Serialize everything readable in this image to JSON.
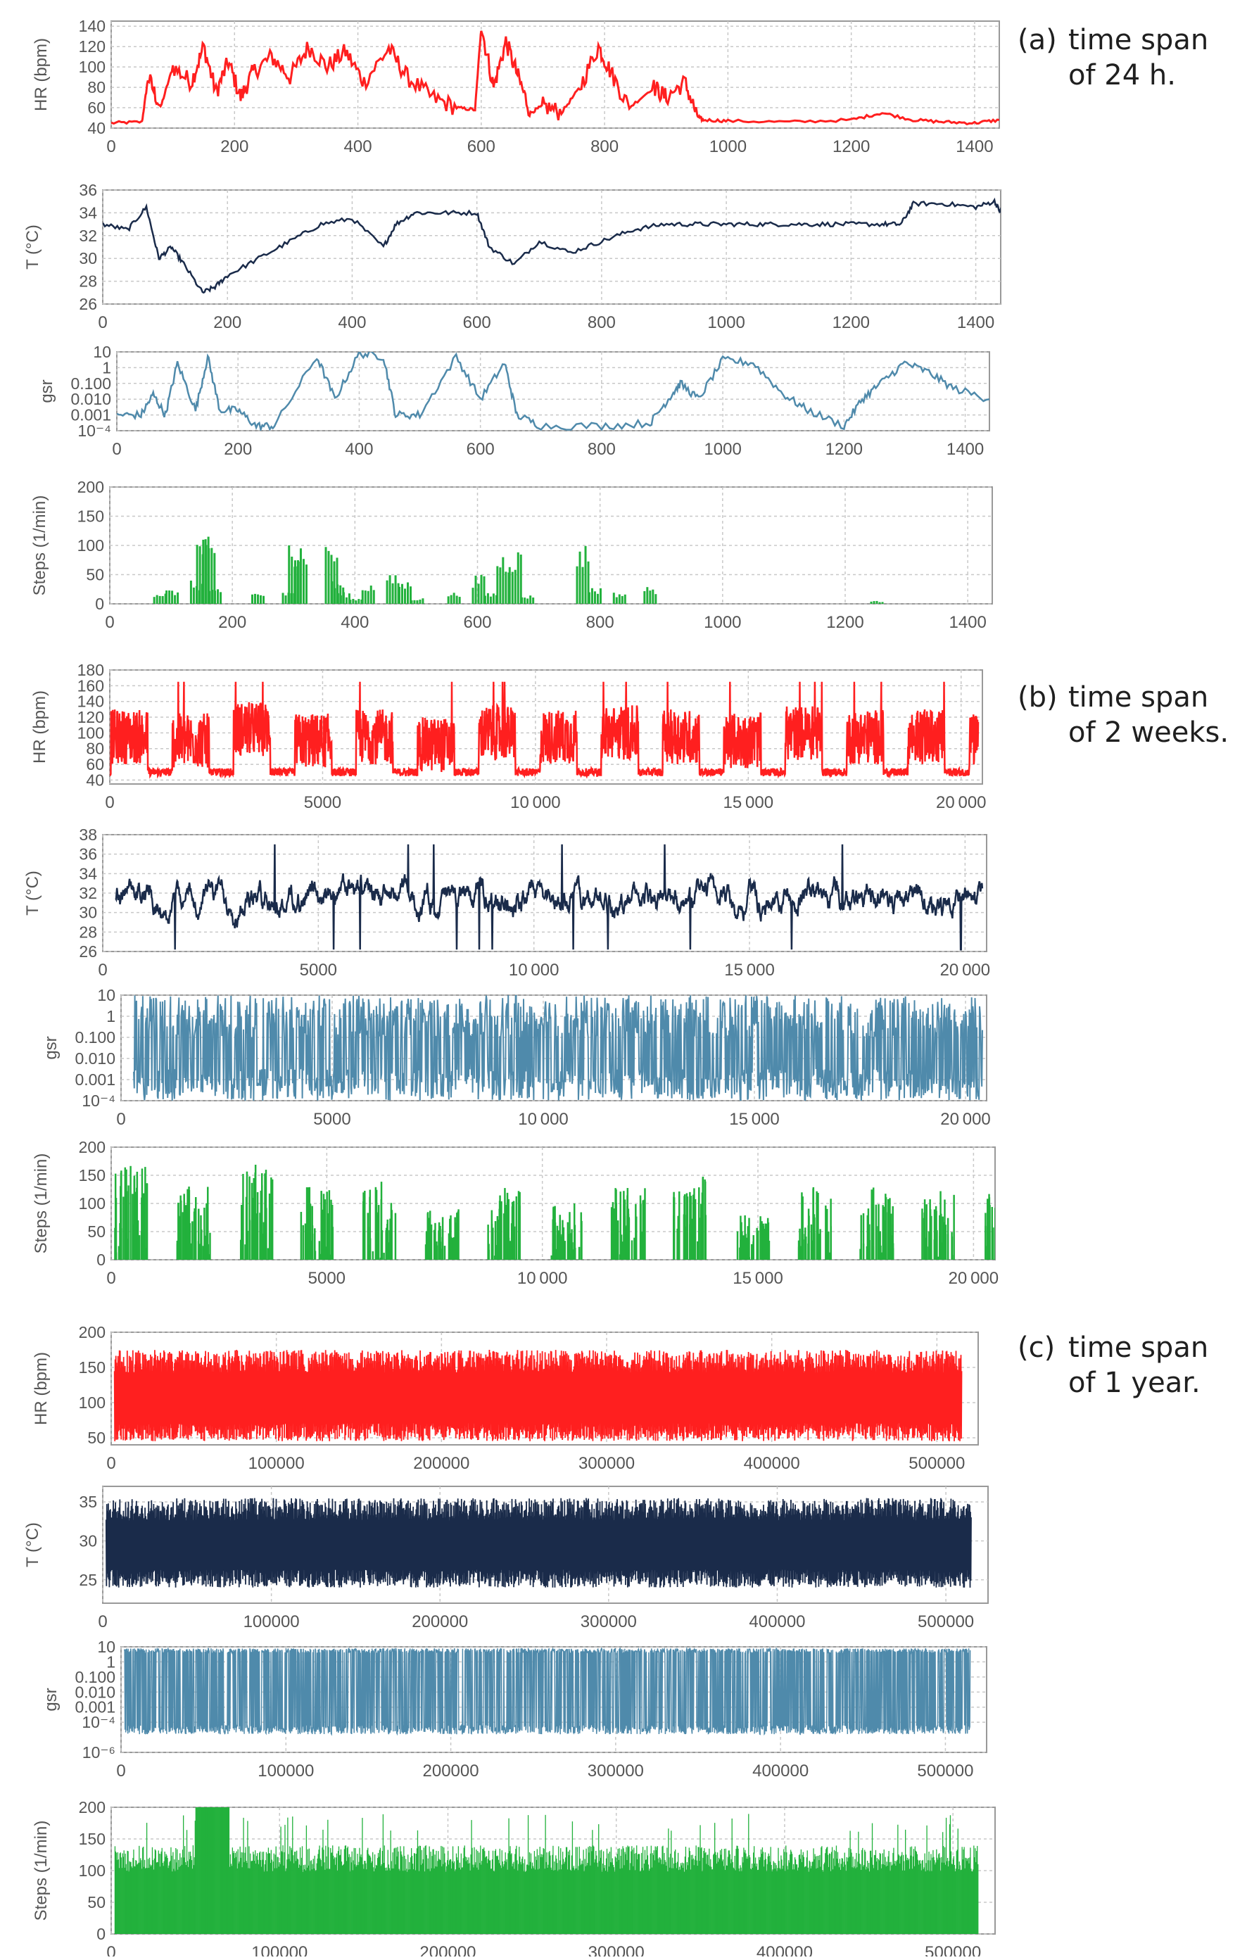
{
  "figure": {
    "groups": [
      {
        "label": "(a)",
        "line1": "time span",
        "line2": "of 24 h."
      },
      {
        "label": "(b)",
        "line1": "time span",
        "line2": "of 2 weeks."
      },
      {
        "label": "(c)",
        "line1": "time span",
        "line2": "of 1 year."
      }
    ]
  },
  "colors": {
    "hr": "#ff1f1f",
    "temperature": "#1a2b4a",
    "gsr": "#4f8aab",
    "steps": "#22b13c",
    "frame": "#999999",
    "grid": "#c8c8c8",
    "text": "#555555"
  },
  "chart_data": [
    {
      "id": "a-hr",
      "group": "a",
      "type": "line",
      "ylabel": "HR (bpm)",
      "xlim": [
        0,
        1440
      ],
      "ylim": [
        40,
        145
      ],
      "xticks": [
        0,
        200,
        400,
        600,
        800,
        1000,
        1200,
        1400
      ],
      "yticks": [
        40,
        60,
        80,
        100,
        120,
        140
      ],
      "grid": true,
      "x": [
        0,
        50,
        60,
        80,
        100,
        130,
        150,
        170,
        190,
        210,
        230,
        260,
        290,
        320,
        350,
        380,
        410,
        450,
        480,
        520,
        560,
        590,
        600,
        620,
        640,
        660,
        680,
        700,
        730,
        760,
        790,
        810,
        840,
        880,
        900,
        930,
        950,
        960,
        1000,
        1100,
        1200,
        1250,
        1300,
        1350,
        1400,
        1440
      ],
      "y": [
        45,
        46,
        90,
        60,
        100,
        85,
        120,
        75,
        105,
        70,
        95,
        110,
        90,
        120,
        100,
        115,
        85,
        118,
        90,
        70,
        60,
        58,
        140,
        80,
        125,
        90,
        55,
        62,
        55,
        80,
        120,
        95,
        60,
        80,
        70,
        85,
        52,
        48,
        47,
        46,
        48,
        55,
        48,
        46,
        45,
        48
      ]
    },
    {
      "id": "a-t",
      "group": "a",
      "type": "line",
      "ylabel": "T (°C)",
      "xlim": [
        0,
        1440
      ],
      "ylim": [
        26,
        36
      ],
      "xticks": [
        0,
        200,
        400,
        600,
        800,
        1000,
        1200,
        1400
      ],
      "yticks": [
        26,
        28,
        30,
        32,
        34,
        36
      ],
      "grid": true,
      "x": [
        0,
        40,
        70,
        90,
        110,
        130,
        160,
        180,
        200,
        250,
        300,
        350,
        400,
        450,
        470,
        500,
        550,
        600,
        620,
        660,
        700,
        750,
        800,
        850,
        900,
        950,
        1000,
        1050,
        1100,
        1150,
        1200,
        1250,
        1280,
        1300,
        1350,
        1400,
        1430,
        1440
      ],
      "y": [
        33,
        32.5,
        34.5,
        30,
        31,
        29.5,
        27,
        27.5,
        28.5,
        30,
        31.5,
        33,
        33.5,
        31,
        33,
        34,
        34,
        34,
        31,
        29.5,
        31.5,
        30.5,
        31.5,
        32.5,
        33,
        33,
        33,
        33,
        33,
        33,
        33,
        33,
        33,
        34.8,
        34.8,
        34.5,
        35,
        34
      ]
    },
    {
      "id": "a-gsr",
      "group": "a",
      "type": "line",
      "ylabel": "gsr",
      "log": true,
      "xlim": [
        0,
        1440
      ],
      "ylim": [
        0.0001,
        10
      ],
      "xticks": [
        0,
        200,
        400,
        600,
        800,
        1000,
        1200,
        1400
      ],
      "ytick_labels": [
        "10",
        "1",
        "0.100",
        "0.010",
        "0.001",
        "10⁻⁴"
      ],
      "ytick_values": [
        10,
        1,
        0.1,
        0.01,
        0.001,
        0.0001
      ],
      "grid": true,
      "x": [
        0,
        40,
        60,
        80,
        100,
        130,
        150,
        170,
        200,
        230,
        260,
        330,
        360,
        400,
        440,
        460,
        500,
        560,
        600,
        640,
        660,
        700,
        800,
        880,
        910,
        930,
        960,
        1000,
        1050,
        1100,
        1140,
        1200,
        1230,
        1260,
        1300,
        1340,
        1380,
        1440
      ],
      "y": [
        0.001,
        0.001,
        0.02,
        0.001,
        2,
        0.002,
        5,
        0.002,
        0.002,
        0.0002,
        0.0002,
        5,
        0.01,
        8,
        5,
        0.001,
        0.001,
        5,
        0.01,
        2,
        0.001,
        0.0002,
        0.0002,
        0.0003,
        0.01,
        0.1,
        0.01,
        3,
        2,
        0.02,
        0.002,
        0.0002,
        0.01,
        0.1,
        2,
        0.5,
        0.05,
        0.01
      ]
    },
    {
      "id": "a-steps",
      "group": "a",
      "type": "bar",
      "ylabel": "Steps (1/min)",
      "xlim": [
        0,
        1440
      ],
      "ylim": [
        0,
        200
      ],
      "xticks": [
        0,
        200,
        400,
        600,
        800,
        1000,
        1200,
        1400
      ],
      "yticks": [
        0,
        50,
        100,
        150,
        200
      ],
      "grid": true,
      "x": [
        80,
        100,
        140,
        150,
        160,
        170,
        240,
        290,
        300,
        310,
        360,
        370,
        380,
        400,
        420,
        460,
        480,
        500,
        560,
        600,
        620,
        640,
        660,
        680,
        770,
        790,
        830,
        880,
        1250
      ],
      "y": [
        20,
        25,
        40,
        120,
        110,
        30,
        20,
        20,
        115,
        110,
        110,
        40,
        20,
        10,
        35,
        50,
        40,
        10,
        20,
        50,
        20,
        90,
        95,
        15,
        105,
        30,
        20,
        30,
        5
      ]
    },
    {
      "id": "b-hr",
      "group": "b",
      "type": "line",
      "dense": true,
      "ylabel": "HR (bpm)",
      "xlim": [
        0,
        20500
      ],
      "ylim": [
        35,
        180
      ],
      "xticks": [
        0,
        5000,
        10000,
        15000,
        20000
      ],
      "yticks": [
        40,
        60,
        80,
        100,
        120,
        140,
        160,
        180
      ],
      "grid": true,
      "day_starts": [
        0,
        1440,
        2880,
        4320,
        5760,
        7200,
        8640,
        10080,
        11520,
        12960,
        14400,
        15840,
        17280,
        18720,
        20160
      ],
      "active_level": [
        95,
        90,
        105,
        90,
        95,
        85,
        100,
        95,
        100,
        95,
        90,
        100,
        95,
        95,
        90
      ],
      "rest_level": 45,
      "peak": 165
    },
    {
      "id": "b-t",
      "group": "b",
      "type": "line",
      "dense": true,
      "ylabel": "T (°C)",
      "xlim": [
        0,
        20500
      ],
      "ylim": [
        26,
        38
      ],
      "xticks": [
        0,
        5000,
        10000,
        15000,
        20000
      ],
      "yticks": [
        26,
        28,
        30,
        32,
        34,
        36,
        38
      ],
      "grid": true,
      "mean": 31.5,
      "spread": 2.5
    },
    {
      "id": "b-gsr",
      "group": "b",
      "type": "line",
      "dense": true,
      "log": true,
      "ylabel": "gsr",
      "xlim": [
        0,
        20500
      ],
      "ylim": [
        0.0001,
        10
      ],
      "xticks": [
        0,
        5000,
        10000,
        15000,
        20000
      ],
      "ytick_labels": [
        "10",
        "1",
        "0.100",
        "0.010",
        "0.001",
        "10⁻⁴"
      ],
      "ytick_values": [
        10,
        1,
        0.1,
        0.01,
        0.001,
        0.0001
      ],
      "grid": true
    },
    {
      "id": "b-steps",
      "group": "b",
      "type": "bar",
      "dense": true,
      "ylabel": "Steps (1/min)",
      "xlim": [
        0,
        20500
      ],
      "ylim": [
        0,
        200
      ],
      "xticks": [
        0,
        5000,
        10000,
        15000,
        20000
      ],
      "yticks": [
        0,
        50,
        100,
        150,
        200
      ],
      "grid": true,
      "day_starts": [
        0,
        1440,
        2880,
        4320,
        5760,
        7200,
        8640,
        10080,
        11520,
        12960,
        14400,
        15840,
        17280,
        18720,
        20160
      ],
      "day_peaks": [
        170,
        130,
        170,
        130,
        140,
        90,
        130,
        100,
        130,
        150,
        80,
        130,
        130,
        125,
        120
      ]
    },
    {
      "id": "c-hr",
      "group": "c",
      "type": "line",
      "dense": true,
      "ylabel": "HR (bpm)",
      "xlim": [
        0,
        525000
      ],
      "ylim": [
        40,
        200
      ],
      "xticks": [
        0,
        100000,
        200000,
        300000,
        400000,
        500000
      ],
      "xtick_labels": [
        "0",
        "100000",
        "200000",
        "300000",
        "400000",
        "500000"
      ],
      "yticks": [
        50,
        100,
        150,
        200
      ],
      "grid": true,
      "low": 45,
      "high": 175
    },
    {
      "id": "c-t",
      "group": "c",
      "type": "line",
      "dense": true,
      "ylabel": "T (°C)",
      "xlim": [
        0,
        525000
      ],
      "ylim": [
        22,
        37
      ],
      "xticks": [
        0,
        100000,
        200000,
        300000,
        400000,
        500000
      ],
      "xtick_labels": [
        "0",
        "100000",
        "200000",
        "300000",
        "400000",
        "500000"
      ],
      "yticks": [
        25,
        30,
        35
      ],
      "grid": true,
      "low": 24,
      "high": 35.5
    },
    {
      "id": "c-gsr",
      "group": "c",
      "type": "line",
      "dense": true,
      "log": true,
      "ylabel": "gsr",
      "xlim": [
        0,
        525000
      ],
      "ylim": [
        1e-06,
        10
      ],
      "xticks": [
        0,
        100000,
        200000,
        300000,
        400000,
        500000
      ],
      "xtick_labels": [
        "0",
        "100000",
        "200000",
        "300000",
        "400000",
        "500000"
      ],
      "ytick_labels": [
        "10",
        "1",
        "0.100",
        "0.010",
        "0.001",
        "10⁻⁴",
        "10⁻⁶"
      ],
      "ytick_values": [
        10,
        1,
        0.1,
        0.01,
        0.001,
        0.0001,
        1e-06
      ],
      "grid": true
    },
    {
      "id": "c-steps",
      "group": "c",
      "type": "bar",
      "dense": true,
      "ylabel": "Steps (1/min)",
      "xlim": [
        0,
        525000
      ],
      "ylim": [
        0,
        200
      ],
      "xticks": [
        0,
        100000,
        200000,
        300000,
        400000,
        500000
      ],
      "xtick_labels": [
        "0",
        "100000",
        "200000",
        "300000",
        "400000",
        "500000"
      ],
      "yticks": [
        0,
        50,
        100,
        150,
        200
      ],
      "grid": true,
      "typical_max": 140,
      "saturated_range": [
        50000,
        70000
      ]
    }
  ]
}
